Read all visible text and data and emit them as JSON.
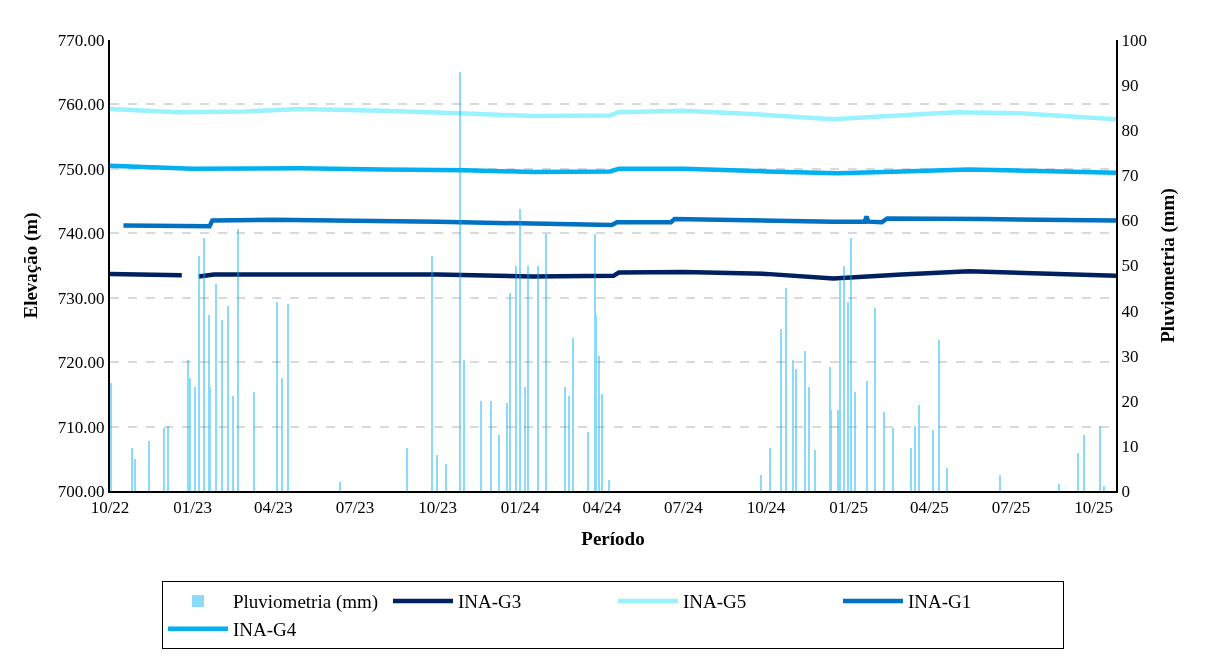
{
  "chart_data": {
    "type": "line",
    "xlabel": "Período",
    "ylabel": "Elevação (m)",
    "y2label": "Pluviometria (mm)",
    "xlim": [
      "2022-10-01",
      "2025-10-26"
    ],
    "xticks": [
      {
        "value": "2022-10-01",
        "label": "10/22"
      },
      {
        "value": "2023-01-01",
        "label": "01/23"
      },
      {
        "value": "2023-04-01",
        "label": "04/23"
      },
      {
        "value": "2023-07-01",
        "label": "07/23"
      },
      {
        "value": "2023-10-01",
        "label": "10/23"
      },
      {
        "value": "2024-01-01",
        "label": "01/24"
      },
      {
        "value": "2024-04-01",
        "label": "04/24"
      },
      {
        "value": "2024-07-01",
        "label": "07/24"
      },
      {
        "value": "2024-10-01",
        "label": "10/24"
      },
      {
        "value": "2025-01-01",
        "label": "01/25"
      },
      {
        "value": "2025-04-01",
        "label": "04/25"
      },
      {
        "value": "2025-07-01",
        "label": "07/25"
      },
      {
        "value": "2025-10-01",
        "label": "10/25"
      }
    ],
    "ylim": [
      700,
      770
    ],
    "yticks": [
      {
        "value": 700,
        "label": "700.00"
      },
      {
        "value": 710,
        "label": "710.00"
      },
      {
        "value": 720,
        "label": "720.00"
      },
      {
        "value": 730,
        "label": "730.00"
      },
      {
        "value": 740,
        "label": "740.00"
      },
      {
        "value": 750,
        "label": "750.00"
      },
      {
        "value": 760,
        "label": "760.00"
      },
      {
        "value": 770,
        "label": "770.00"
      }
    ],
    "y2lim": [
      0,
      100
    ],
    "y2ticks": [
      0,
      10,
      20,
      30,
      40,
      50,
      60,
      70,
      80,
      90,
      100
    ],
    "grid": "y",
    "legend": "bottom",
    "line_style": "solid",
    "series": [
      {
        "name": "Pluviometria (mm)",
        "type": "bar",
        "axis": "y2",
        "color": "#00b0f0",
        "x": [
          "2022-10-02",
          "2022-10-25",
          "2022-10-29",
          "2022-11-14",
          "2022-11-30",
          "2022-12-05",
          "2022-12-27",
          "2022-12-29",
          "2023-01-04",
          "2023-01-08",
          "2023-01-14",
          "2023-01-19",
          "2023-01-21",
          "2023-01-27",
          "2023-02-03",
          "2023-02-10",
          "2023-02-15",
          "2023-02-21",
          "2023-03-11",
          "2023-04-05",
          "2023-04-11",
          "2023-04-17",
          "2023-06-14",
          "2023-08-28",
          "2023-09-25",
          "2023-09-30",
          "2023-10-11",
          "2023-10-26",
          "2023-10-31",
          "2023-11-19",
          "2023-11-30",
          "2023-12-09",
          "2023-12-17",
          "2023-12-21",
          "2023-12-28",
          "2024-01-01",
          "2024-01-06",
          "2024-01-10",
          "2024-01-21",
          "2024-01-30",
          "2024-02-20",
          "2024-02-24",
          "2024-02-29",
          "2024-03-17",
          "2024-03-24",
          "2024-03-26",
          "2024-03-29",
          "2024-04-01",
          "2024-04-09",
          "2024-09-25",
          "2024-10-06",
          "2024-10-18",
          "2024-10-23",
          "2024-10-31",
          "2024-11-04",
          "2024-11-13",
          "2024-11-18",
          "2024-11-25",
          "2024-12-11",
          "2024-12-13",
          "2024-12-20",
          "2024-12-22",
          "2024-12-27",
          "2024-12-31",
          "2025-01-04",
          "2025-01-08",
          "2025-01-22",
          "2025-01-30",
          "2025-02-09",
          "2025-02-19",
          "2025-03-12",
          "2025-03-16",
          "2025-03-20",
          "2025-04-05",
          "2025-04-12",
          "2025-04-21",
          "2025-06-19",
          "2025-08-24",
          "2025-09-14",
          "2025-09-20",
          "2025-10-08",
          "2025-10-13"
        ],
        "values": [
          24,
          9.5,
          7,
          11,
          14,
          14.5,
          29,
          25,
          23,
          52,
          56,
          39,
          23,
          46,
          38,
          41,
          21,
          58,
          22,
          42,
          25,
          41.5,
          2,
          9.5,
          52,
          8,
          6,
          93,
          29,
          20,
          20,
          12.5,
          19.5,
          44,
          50,
          62.5,
          23,
          50,
          50,
          57,
          23,
          21,
          34,
          13,
          57,
          39,
          30,
          21.5,
          2.5,
          3.5,
          9.5,
          36,
          45,
          29,
          27,
          31,
          23,
          9,
          27.5,
          18,
          18,
          46.5,
          50,
          42,
          56,
          22,
          24.5,
          40.5,
          17.5,
          14,
          9.5,
          14.5,
          19,
          13.5,
          33.5,
          5,
          3.5,
          1.5,
          8.5,
          12.5,
          14.5,
          1
        ]
      },
      {
        "name": "INA-G3",
        "color": "#002060",
        "x": [
          "2022-10-01",
          "2022-12-20",
          "2022-12-30",
          "2023-01-08",
          "2023-01-25",
          "2023-10-01",
          "2024-01-15",
          "2024-04-14",
          "2024-04-20",
          "2024-07-01",
          "2024-10-01",
          "2024-12-15",
          "2025-03-01",
          "2025-05-15",
          "2025-10-26"
        ],
        "values": [
          733.7,
          733.5,
          null,
          733.3,
          733.6,
          733.6,
          733.3,
          733.4,
          733.9,
          734.0,
          733.7,
          733.0,
          733.6,
          734.1,
          733.4
        ]
      },
      {
        "name": "INA-G5",
        "color": "#99f3ff",
        "x": [
          "2022-10-01",
          "2022-12-15",
          "2023-03-01",
          "2023-05-01",
          "2023-08-01",
          "2023-11-01",
          "2024-01-15",
          "2024-04-10",
          "2024-04-20",
          "2024-07-01",
          "2024-09-15",
          "2024-12-15",
          "2025-02-15",
          "2025-05-01",
          "2025-07-15",
          "2025-10-26"
        ],
        "values": [
          759.3,
          758.8,
          758.9,
          759.3,
          759.0,
          758.6,
          758.2,
          758.3,
          758.8,
          759.0,
          758.5,
          757.7,
          758.2,
          758.8,
          758.6,
          757.7
        ]
      },
      {
        "name": "INA-G1",
        "color": "#0070c0",
        "x": [
          "2022-10-16",
          "2023-01-20",
          "2023-01-23",
          "2023-04-01",
          "2023-10-01",
          "2024-01-15",
          "2024-04-12",
          "2024-04-18",
          "2024-06-17",
          "2024-06-21",
          "2024-12-15",
          "2025-01-19",
          "2025-01-21",
          "2025-01-23",
          "2025-02-07",
          "2025-02-13",
          "2025-06-01",
          "2025-10-26"
        ],
        "values": [
          741.2,
          741.1,
          742.0,
          742.1,
          741.8,
          741.5,
          741.3,
          741.7,
          741.7,
          742.2,
          741.8,
          741.8,
          742.6,
          741.8,
          741.7,
          742.3,
          742.2,
          742.0
        ]
      },
      {
        "name": "INA-G4",
        "color": "#00b0f0",
        "x": [
          "2022-10-01",
          "2023-01-01",
          "2023-05-01",
          "2023-08-01",
          "2023-11-01",
          "2024-01-15",
          "2024-04-10",
          "2024-04-20",
          "2024-07-01",
          "2024-10-01",
          "2024-12-20",
          "2025-03-01",
          "2025-05-15",
          "2025-10-26"
        ],
        "values": [
          750.5,
          750.0,
          750.1,
          749.9,
          749.8,
          749.5,
          749.6,
          750.0,
          750.0,
          749.6,
          749.3,
          749.6,
          749.9,
          749.4
        ]
      }
    ]
  }
}
